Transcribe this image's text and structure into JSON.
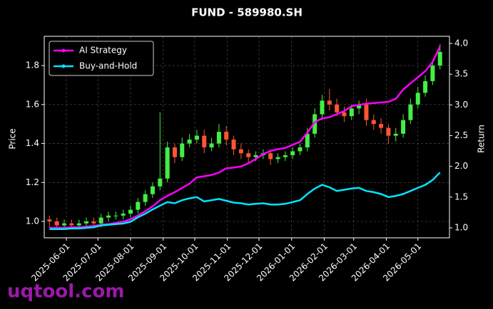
{
  "chart_data": {
    "type": "candlestick",
    "title": "FUND - 589980.SH",
    "ylabel": "Price",
    "y2label": "Return",
    "watermark": "uqtool.com",
    "x": [
      "2025-05-16",
      "2025-05-23",
      "2025-05-30",
      "2025-06-06",
      "2025-06-13",
      "2025-06-20",
      "2025-06-27",
      "2025-07-04",
      "2025-07-11",
      "2025-07-18",
      "2025-07-25",
      "2025-08-01",
      "2025-08-08",
      "2025-08-15",
      "2025-08-22",
      "2025-08-29",
      "2025-09-05",
      "2025-09-12",
      "2025-09-19",
      "2025-09-26",
      "2025-10-03",
      "2025-10-10",
      "2025-10-17",
      "2025-10-24",
      "2025-10-31",
      "2025-11-07",
      "2025-11-14",
      "2025-11-21",
      "2025-11-28",
      "2025-12-05",
      "2025-12-12",
      "2025-12-19",
      "2025-12-26",
      "2026-01-02",
      "2026-01-09",
      "2026-01-16",
      "2026-01-23",
      "2026-01-30",
      "2026-02-06",
      "2026-02-13",
      "2026-02-20",
      "2026-02-27",
      "2026-03-06",
      "2026-03-13",
      "2026-03-20",
      "2026-03-27",
      "2026-04-03",
      "2026-04-10",
      "2026-04-17",
      "2026-04-24",
      "2026-05-01",
      "2026-05-08",
      "2026-05-15",
      "2026-05-22"
    ],
    "open": [
      1.01,
      1.0,
      0.98,
      0.99,
      0.98,
      0.99,
      1.0,
      0.99,
      1.02,
      1.03,
      1.03,
      1.04,
      1.06,
      1.1,
      1.14,
      1.18,
      1.22,
      1.38,
      1.33,
      1.4,
      1.42,
      1.44,
      1.38,
      1.4,
      1.46,
      1.42,
      1.37,
      1.35,
      1.33,
      1.34,
      1.35,
      1.32,
      1.33,
      1.34,
      1.36,
      1.38,
      1.45,
      1.55,
      1.62,
      1.6,
      1.56,
      1.54,
      1.58,
      1.6,
      1.52,
      1.5,
      1.48,
      1.44,
      1.45,
      1.52,
      1.6,
      1.66,
      1.72,
      1.8
    ],
    "high": [
      1.03,
      1.02,
      1.01,
      1.01,
      1.01,
      1.02,
      1.02,
      1.04,
      1.05,
      1.05,
      1.06,
      1.08,
      1.12,
      1.16,
      1.2,
      1.56,
      1.41,
      1.4,
      1.43,
      1.45,
      1.47,
      1.47,
      1.43,
      1.5,
      1.49,
      1.44,
      1.4,
      1.37,
      1.36,
      1.37,
      1.37,
      1.35,
      1.36,
      1.38,
      1.4,
      1.48,
      1.58,
      1.65,
      1.68,
      1.63,
      1.59,
      1.6,
      1.62,
      1.63,
      1.55,
      1.53,
      1.5,
      1.48,
      1.55,
      1.63,
      1.69,
      1.75,
      1.83,
      1.91
    ],
    "low": [
      0.97,
      0.96,
      0.96,
      0.96,
      0.96,
      0.97,
      0.97,
      0.97,
      1.0,
      1.01,
      1.01,
      1.02,
      1.04,
      1.08,
      1.12,
      1.16,
      1.2,
      1.3,
      1.31,
      1.38,
      1.4,
      1.35,
      1.36,
      1.38,
      1.39,
      1.34,
      1.32,
      1.3,
      1.31,
      1.32,
      1.29,
      1.3,
      1.31,
      1.32,
      1.34,
      1.36,
      1.43,
      1.52,
      1.57,
      1.54,
      1.51,
      1.52,
      1.55,
      1.49,
      1.47,
      1.45,
      1.4,
      1.41,
      1.43,
      1.5,
      1.58,
      1.64,
      1.7,
      1.78
    ],
    "close": [
      1.0,
      0.98,
      0.99,
      0.98,
      0.99,
      1.0,
      0.99,
      1.02,
      1.03,
      1.03,
      1.04,
      1.06,
      1.1,
      1.14,
      1.18,
      1.22,
      1.38,
      1.33,
      1.4,
      1.42,
      1.44,
      1.38,
      1.4,
      1.46,
      1.42,
      1.37,
      1.35,
      1.33,
      1.34,
      1.35,
      1.32,
      1.33,
      1.34,
      1.36,
      1.38,
      1.45,
      1.55,
      1.62,
      1.6,
      1.56,
      1.54,
      1.58,
      1.6,
      1.52,
      1.5,
      1.48,
      1.44,
      1.45,
      1.52,
      1.6,
      1.66,
      1.72,
      1.8,
      1.87
    ],
    "up_color": "#44ee44",
    "down_color": "#ff5533",
    "series": [
      {
        "name": "AI Strategy",
        "color": "#ff00ff",
        "axis": "y2",
        "values": [
          1.0,
          1.0,
          1.0,
          1.01,
          1.01,
          1.02,
          1.03,
          1.05,
          1.06,
          1.08,
          1.1,
          1.14,
          1.2,
          1.27,
          1.35,
          1.45,
          1.52,
          1.58,
          1.65,
          1.72,
          1.82,
          1.84,
          1.86,
          1.9,
          1.97,
          1.98,
          2.0,
          2.05,
          2.12,
          2.2,
          2.25,
          2.28,
          2.3,
          2.35,
          2.4,
          2.55,
          2.72,
          2.78,
          2.8,
          2.85,
          2.9,
          2.98,
          3.0,
          3.02,
          3.03,
          3.04,
          3.05,
          3.1,
          3.25,
          3.35,
          3.45,
          3.55,
          3.7,
          3.95
        ]
      },
      {
        "name": "Buy-and-Hold",
        "color": "#00e5ff",
        "axis": "y2",
        "values": [
          0.98,
          0.98,
          0.98,
          0.99,
          0.99,
          1.0,
          1.01,
          1.04,
          1.05,
          1.06,
          1.07,
          1.1,
          1.17,
          1.23,
          1.3,
          1.36,
          1.42,
          1.4,
          1.45,
          1.48,
          1.5,
          1.43,
          1.45,
          1.47,
          1.44,
          1.41,
          1.4,
          1.38,
          1.39,
          1.4,
          1.38,
          1.38,
          1.39,
          1.42,
          1.45,
          1.55,
          1.64,
          1.7,
          1.66,
          1.6,
          1.62,
          1.64,
          1.65,
          1.6,
          1.58,
          1.55,
          1.5,
          1.52,
          1.55,
          1.6,
          1.65,
          1.7,
          1.78,
          1.9
        ]
      }
    ],
    "xlim": [
      "2025-05-11",
      "2026-05-31"
    ],
    "xticks": [
      "2025-06-01",
      "2025-07-01",
      "2025-08-01",
      "2025-09-01",
      "2025-10-01",
      "2025-11-01",
      "2025-12-01",
      "2026-01-01",
      "2026-02-01",
      "2026-03-01",
      "2026-04-01",
      "2026-05-01"
    ],
    "ylim": [
      0.916,
      1.95
    ],
    "yticks": [
      {
        "value": 1,
        "label": "1.0"
      },
      {
        "value": 1.2,
        "label": "1.2"
      },
      {
        "value": 1.4,
        "label": "1.4"
      },
      {
        "value": 1.6,
        "label": "1.6"
      },
      {
        "value": 1.8,
        "label": "1.8"
      }
    ],
    "y2lim": [
      0.838,
      4.116
    ],
    "y2ticks": [
      {
        "value": 1,
        "label": "1.0"
      },
      {
        "value": 1.5,
        "label": "1.5"
      },
      {
        "value": 2,
        "label": "2.0"
      },
      {
        "value": 2.5,
        "label": "2.5"
      },
      {
        "value": 3,
        "label": "3.0"
      },
      {
        "value": 3.5,
        "label": "3.5"
      },
      {
        "value": 4,
        "label": "4.0"
      }
    ],
    "grid": true,
    "legend": "upper left"
  }
}
